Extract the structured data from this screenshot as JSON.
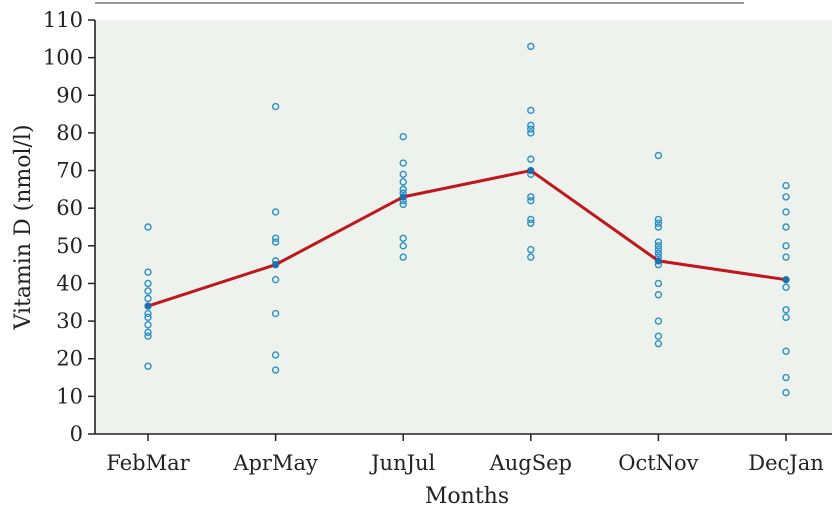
{
  "chart_data": {
    "type": "scatter",
    "title": "",
    "xlabel": "Months",
    "ylabel": "Vitamin D (nmol/l)",
    "categories": [
      "FebMar",
      "AprMay",
      "JunJul",
      "AugSep",
      "OctNov",
      "DecJan"
    ],
    "ylim": [
      0,
      110
    ],
    "yticks": [
      0,
      10,
      20,
      30,
      40,
      50,
      60,
      70,
      80,
      90,
      100,
      110
    ],
    "grid": false,
    "colors": {
      "background": "#edf3ec",
      "points": "#2b8fc7",
      "line": "#c0161e",
      "axis": "#222222"
    },
    "series": [
      {
        "kind": "points",
        "points": [
          [
            0,
            55
          ],
          [
            0,
            43
          ],
          [
            0,
            40
          ],
          [
            0,
            38
          ],
          [
            0,
            36
          ],
          [
            0,
            34
          ],
          [
            0,
            32
          ],
          [
            0,
            31
          ],
          [
            0,
            29
          ],
          [
            0,
            27
          ],
          [
            0,
            26
          ],
          [
            0,
            18
          ],
          [
            1,
            87
          ],
          [
            1,
            59
          ],
          [
            1,
            52
          ],
          [
            1,
            51
          ],
          [
            1,
            46
          ],
          [
            1,
            45
          ],
          [
            1,
            41
          ],
          [
            1,
            32
          ],
          [
            1,
            21
          ],
          [
            1,
            17
          ],
          [
            2,
            79
          ],
          [
            2,
            72
          ],
          [
            2,
            69
          ],
          [
            2,
            67
          ],
          [
            2,
            65
          ],
          [
            2,
            64
          ],
          [
            2,
            63
          ],
          [
            2,
            62
          ],
          [
            2,
            61
          ],
          [
            2,
            52
          ],
          [
            2,
            50
          ],
          [
            2,
            47
          ],
          [
            3,
            103
          ],
          [
            3,
            86
          ],
          [
            3,
            82
          ],
          [
            3,
            81
          ],
          [
            3,
            80
          ],
          [
            3,
            73
          ],
          [
            3,
            70
          ],
          [
            3,
            69
          ],
          [
            3,
            63
          ],
          [
            3,
            62
          ],
          [
            3,
            57
          ],
          [
            3,
            56
          ],
          [
            3,
            49
          ],
          [
            3,
            47
          ],
          [
            4,
            74
          ],
          [
            4,
            57
          ],
          [
            4,
            56
          ],
          [
            4,
            55
          ],
          [
            4,
            51
          ],
          [
            4,
            50
          ],
          [
            4,
            49
          ],
          [
            4,
            48
          ],
          [
            4,
            47
          ],
          [
            4,
            46
          ],
          [
            4,
            45
          ],
          [
            4,
            40
          ],
          [
            4,
            37
          ],
          [
            4,
            30
          ],
          [
            4,
            26
          ],
          [
            4,
            24
          ],
          [
            5,
            66
          ],
          [
            5,
            63
          ],
          [
            5,
            59
          ],
          [
            5,
            55
          ],
          [
            5,
            50
          ],
          [
            5,
            47
          ],
          [
            5,
            41
          ],
          [
            5,
            39
          ],
          [
            5,
            33
          ],
          [
            5,
            31
          ],
          [
            5,
            22
          ],
          [
            5,
            15
          ],
          [
            5,
            11
          ]
        ]
      },
      {
        "kind": "mean-line",
        "values": [
          34,
          45,
          63,
          70,
          46,
          41
        ]
      }
    ]
  }
}
